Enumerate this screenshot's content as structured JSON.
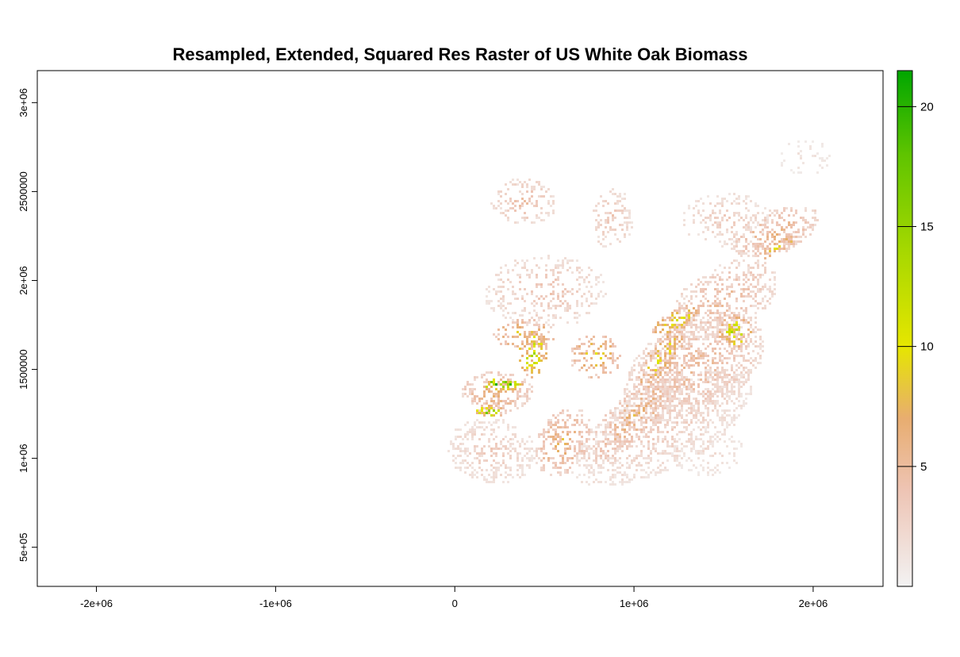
{
  "chart_data": {
    "type": "heatmap",
    "title": "Resampled, Extended, Squared Res Raster of US White Oak Biomass",
    "xlim": [
      -2330000,
      2390000
    ],
    "ylim": [
      280000,
      3180000
    ],
    "x_ticks": [
      {
        "value": -2000000,
        "label": "-2e+06"
      },
      {
        "value": -1000000,
        "label": "-1e+06"
      },
      {
        "value": 0,
        "label": "0"
      },
      {
        "value": 1000000,
        "label": "1e+06"
      },
      {
        "value": 2000000,
        "label": "2e+06"
      }
    ],
    "y_ticks": [
      {
        "value": 500000,
        "label": "5e+05"
      },
      {
        "value": 1000000,
        "label": "1e+06"
      },
      {
        "value": 1500000,
        "label": "1500000"
      },
      {
        "value": 2000000,
        "label": "2e+06"
      },
      {
        "value": 2500000,
        "label": "2500000"
      },
      {
        "value": 3000000,
        "label": "3e+06"
      }
    ],
    "legend": {
      "placement": "right",
      "min": 0,
      "max": 21.5,
      "ticks": [
        {
          "value": 5,
          "label": "5"
        },
        {
          "value": 10,
          "label": "10"
        },
        {
          "value": 15,
          "label": "15"
        },
        {
          "value": 20,
          "label": "20"
        }
      ],
      "color_stops": [
        {
          "value": 0,
          "color": "#f2f2f2"
        },
        {
          "value": 4,
          "color": "#eec4b4"
        },
        {
          "value": 7,
          "color": "#e8ad70"
        },
        {
          "value": 10,
          "color": "#e6e600"
        },
        {
          "value": 14,
          "color": "#a6d800"
        },
        {
          "value": 18,
          "color": "#5fc400"
        },
        {
          "value": 21.5,
          "color": "#00a600"
        }
      ]
    },
    "grid": false,
    "regions": [
      {
        "x": 1150000,
        "y": 1180000,
        "rx": 560000,
        "ry": 230000,
        "rot": -28,
        "value": 3.0,
        "density": 0.4
      },
      {
        "x": 1330000,
        "y": 1520000,
        "rx": 430000,
        "ry": 260000,
        "rot": -30,
        "value": 4.5,
        "density": 0.45
      },
      {
        "x": 1500000,
        "y": 1900000,
        "rx": 320000,
        "ry": 190000,
        "rot": -30,
        "value": 4.5,
        "density": 0.4
      },
      {
        "x": 1780000,
        "y": 2280000,
        "rx": 260000,
        "ry": 120000,
        "rot": -20,
        "value": 5.5,
        "density": 0.45
      },
      {
        "x": 1000000,
        "y": 1250000,
        "rx": 360000,
        "ry": 120000,
        "rot": -45,
        "value": 6.0,
        "density": 0.45
      },
      {
        "x": 1150000,
        "y": 1580000,
        "rx": 230000,
        "ry": 70000,
        "rot": -55,
        "value": 9.5,
        "density": 0.5
      },
      {
        "x": 1230000,
        "y": 1780000,
        "rx": 150000,
        "ry": 60000,
        "rot": -30,
        "value": 10.5,
        "density": 0.5
      },
      {
        "x": 1560000,
        "y": 1720000,
        "rx": 90000,
        "ry": 90000,
        "rot": 0,
        "value": 12,
        "density": 0.45
      },
      {
        "x": 1800000,
        "y": 2200000,
        "rx": 120000,
        "ry": 40000,
        "rot": -30,
        "value": 9.0,
        "density": 0.5
      },
      {
        "x": 200000,
        "y": 1050000,
        "rx": 250000,
        "ry": 180000,
        "rot": 10,
        "value": 3.0,
        "density": 0.4
      },
      {
        "x": 230000,
        "y": 1380000,
        "rx": 200000,
        "ry": 120000,
        "rot": 0,
        "value": 6.0,
        "density": 0.45
      },
      {
        "x": 260000,
        "y": 1420000,
        "rx": 110000,
        "ry": 30000,
        "rot": 0,
        "value": 19.0,
        "density": 0.7
      },
      {
        "x": 200000,
        "y": 1270000,
        "rx": 90000,
        "ry": 30000,
        "rot": 0,
        "value": 17.0,
        "density": 0.6
      },
      {
        "x": 430000,
        "y": 1600000,
        "rx": 80000,
        "ry": 140000,
        "rot": 0,
        "value": 13.0,
        "density": 0.45
      },
      {
        "x": 380000,
        "y": 1700000,
        "rx": 170000,
        "ry": 90000,
        "rot": 0,
        "value": 8.5,
        "density": 0.35
      },
      {
        "x": 600000,
        "y": 1100000,
        "rx": 140000,
        "ry": 200000,
        "rot": 30,
        "value": 6.5,
        "density": 0.45
      },
      {
        "x": 780000,
        "y": 1580000,
        "rx": 140000,
        "ry": 120000,
        "rot": 0,
        "value": 8.5,
        "density": 0.35
      },
      {
        "x": 380000,
        "y": 2450000,
        "rx": 180000,
        "ry": 130000,
        "rot": 0,
        "value": 4.0,
        "density": 0.3
      },
      {
        "x": 870000,
        "y": 2350000,
        "rx": 120000,
        "ry": 170000,
        "rot": 0,
        "value": 3.5,
        "density": 0.3
      },
      {
        "x": 1500000,
        "y": 2350000,
        "rx": 250000,
        "ry": 150000,
        "rot": 0,
        "value": 3.0,
        "density": 0.25
      },
      {
        "x": 1950000,
        "y": 2700000,
        "rx": 150000,
        "ry": 100000,
        "rot": 0,
        "value": 1.5,
        "density": 0.15
      },
      {
        "x": 500000,
        "y": 1950000,
        "rx": 350000,
        "ry": 200000,
        "rot": 0,
        "value": 3.5,
        "density": 0.25
      },
      {
        "x": 1400000,
        "y": 1050000,
        "rx": 200000,
        "ry": 150000,
        "rot": 0,
        "value": 2.0,
        "density": 0.2
      }
    ]
  }
}
